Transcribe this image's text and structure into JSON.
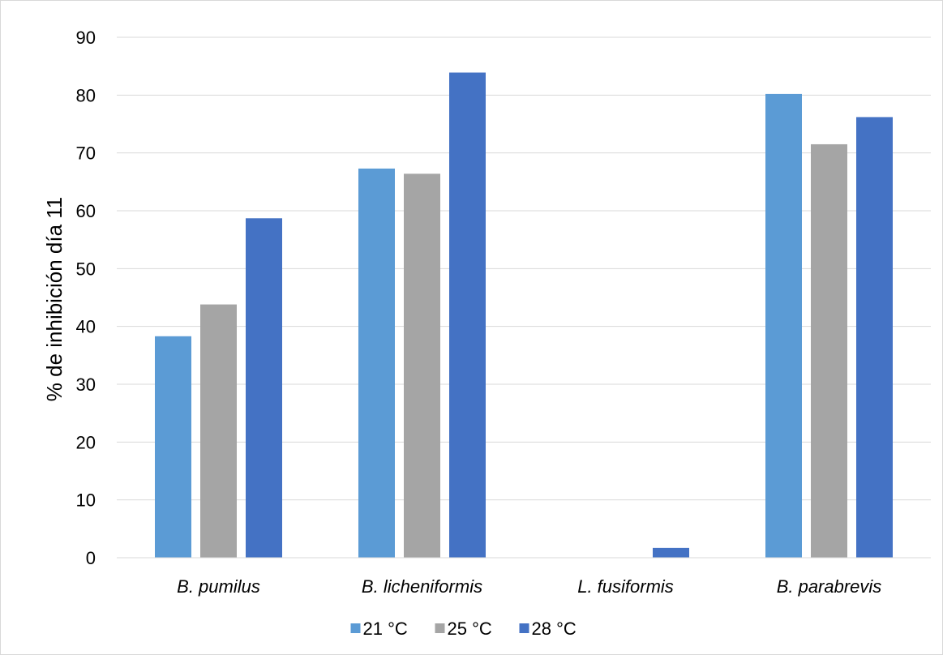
{
  "chart_data": {
    "type": "bar",
    "title": "",
    "xlabel": "",
    "ylabel": "% de inhibición día 11",
    "ylim": [
      0,
      90
    ],
    "yticks": [
      0,
      10,
      20,
      30,
      40,
      50,
      60,
      70,
      80,
      90
    ],
    "grid": true,
    "legend_position": "bottom",
    "categories": [
      "B. pumilus",
      "B. licheniformis",
      "L. fusiformis",
      "B. parabrevis"
    ],
    "series": [
      {
        "name": "21 °C",
        "color": "#5b9bd5",
        "values": [
          38.3,
          67.3,
          0,
          80.2
        ]
      },
      {
        "name": "25 °C",
        "color": "#a5a5a5",
        "values": [
          43.8,
          66.4,
          0,
          71.5
        ]
      },
      {
        "name": "28 °C",
        "color": "#4472c4",
        "values": [
          58.7,
          83.9,
          1.7,
          76.2
        ]
      }
    ]
  }
}
